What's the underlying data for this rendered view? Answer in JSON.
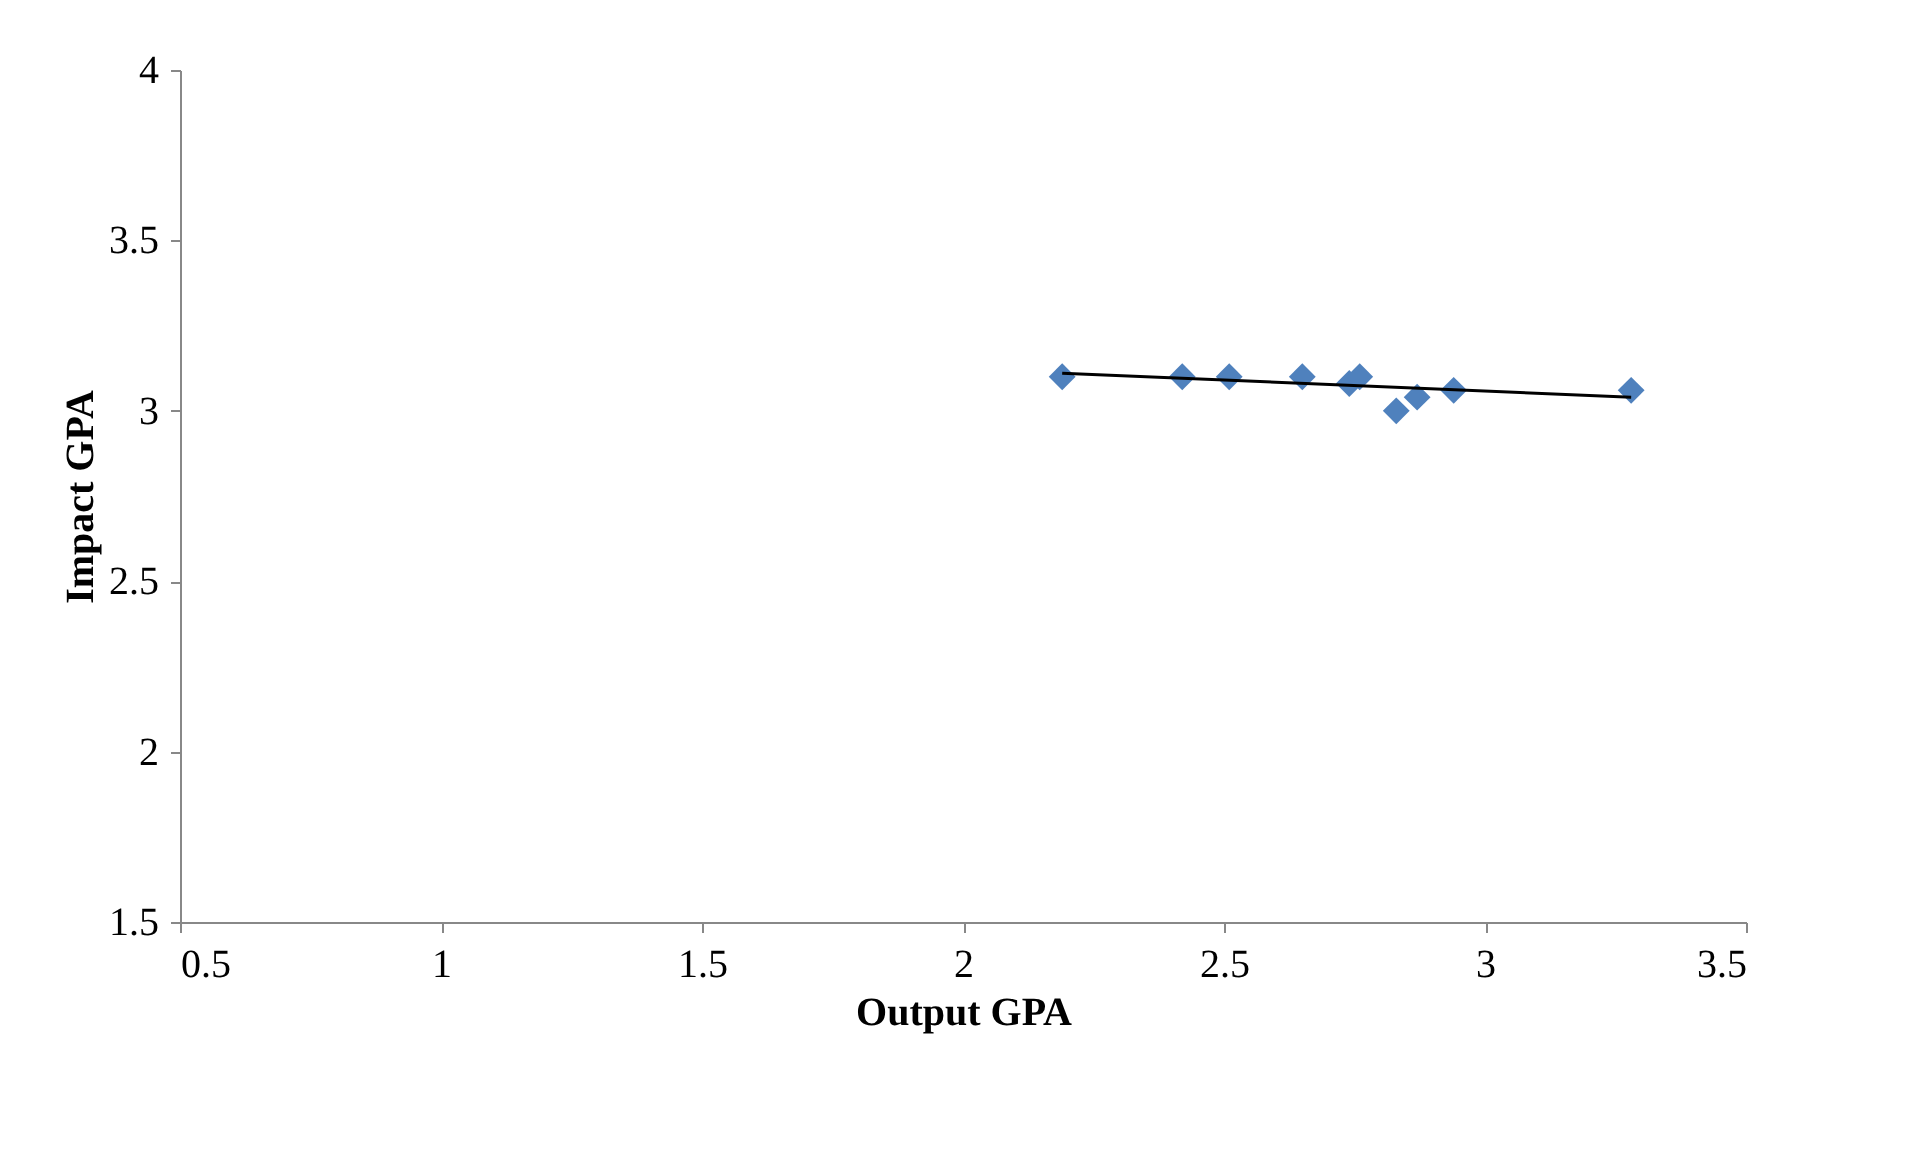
{
  "chart_data": {
    "type": "scatter",
    "xlabel": "Output GPA",
    "ylabel": "Impact GPA",
    "marker": "diamond",
    "grid": false,
    "xlim": [
      0.5,
      3.5
    ],
    "xticks": [
      0.5,
      1,
      1.5,
      2,
      2.5,
      3,
      3.5
    ],
    "ylim": [
      1.5,
      4
    ],
    "yticks": [
      1.5,
      2,
      2.5,
      3,
      3.5,
      4
    ],
    "series": [
      {
        "color": "#4f81bd",
        "x": [
          2.19,
          2.42,
          2.51,
          2.65,
          2.74,
          2.76,
          2.83,
          2.87,
          2.94,
          3.28
        ],
        "values": [
          3.1,
          3.1,
          3.1,
          3.1,
          3.08,
          3.1,
          3.0,
          3.04,
          3.06,
          3.06
        ]
      },
      {
        "type": "line",
        "color": "#000000",
        "marker": "none",
        "x": [
          2.19,
          3.28
        ],
        "values": [
          3.11,
          3.04
        ]
      }
    ]
  }
}
